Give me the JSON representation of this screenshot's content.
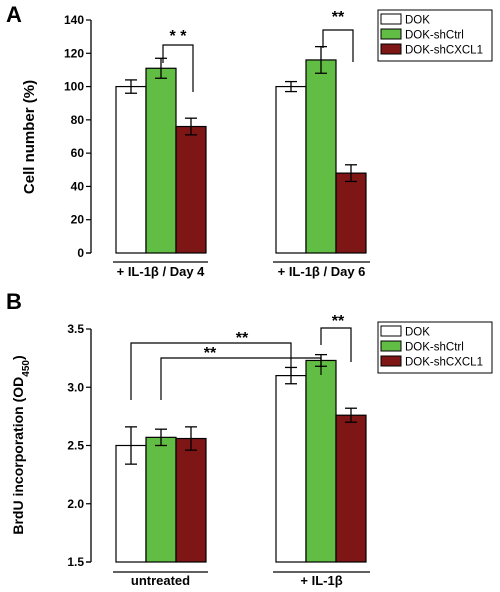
{
  "colors": {
    "DOK": "#ffffff",
    "DOK-shCtrl": "#62bd44",
    "DOK-shCXCL1": "#7f1616",
    "outline": "#000000"
  },
  "chart_data": [
    {
      "panel": "A",
      "type": "bar",
      "ylabel": "Cell number (%)",
      "ylim": [
        0,
        140
      ],
      "yticks": [
        "0",
        "20",
        "40",
        "60",
        "80",
        "100",
        "120",
        "140"
      ],
      "categories": [
        "+ IL-1β / Day 4",
        "+ IL-1β / Day 6"
      ],
      "legend_position": "top-right",
      "series": [
        {
          "name": "DOK",
          "values": [
            100,
            100
          ],
          "errors": [
            4,
            3
          ]
        },
        {
          "name": "DOK-shCtrl",
          "values": [
            111,
            116
          ],
          "errors": [
            6,
            8
          ]
        },
        {
          "name": "DOK-shCXCL1",
          "values": [
            76,
            48
          ],
          "errors": [
            5,
            5
          ]
        }
      ],
      "significance": [
        "* *",
        "**"
      ]
    },
    {
      "panel": "B",
      "type": "bar",
      "ylabel": "BrdU incorporation (OD450)",
      "ylim": [
        1.5,
        3.5
      ],
      "yticks": [
        "1.5",
        "2.0",
        "2.5",
        "3.0",
        "3.5"
      ],
      "categories": [
        "untreated",
        "+ IL-1β"
      ],
      "legend_position": "top-right",
      "series": [
        {
          "name": "DOK",
          "values": [
            2.5,
            3.1
          ],
          "errors": [
            0.16,
            0.07
          ]
        },
        {
          "name": "DOK-shCtrl",
          "values": [
            2.57,
            3.23
          ],
          "errors": [
            0.07,
            0.05
          ]
        },
        {
          "name": "DOK-shCXCL1",
          "values": [
            2.56,
            2.76
          ],
          "errors": [
            0.1,
            0.06
          ]
        }
      ],
      "significance": [
        "**",
        "**",
        "**"
      ]
    }
  ]
}
